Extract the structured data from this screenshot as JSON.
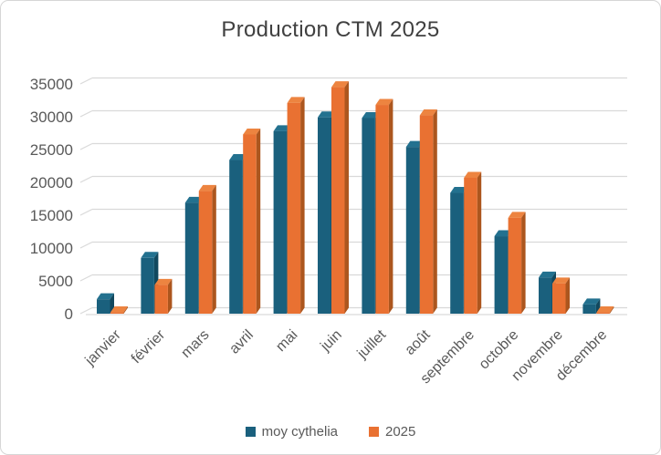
{
  "title": "Production CTM 2025",
  "chart_data": {
    "type": "bar",
    "style": "3d-clustered-column",
    "title": "Production CTM 2025",
    "categories": [
      "janvier",
      "février",
      "mars",
      "avril",
      "mai",
      "juin",
      "juillet",
      "août",
      "septembre",
      "octobre",
      "novembre",
      "décembre"
    ],
    "series": [
      {
        "name": "moy cythelia",
        "color": "#1A607D",
        "color_side": "#11485E",
        "color_top": "#23718F",
        "values": [
          2200,
          8500,
          16900,
          23400,
          27800,
          29900,
          29800,
          25400,
          18400,
          11800,
          5500,
          1400
        ]
      },
      {
        "name": "2025",
        "color": "#E97132",
        "color_side": "#AC561E",
        "color_top": "#ED8440",
        "values": [
          200,
          4400,
          18700,
          27300,
          32100,
          34500,
          31800,
          30200,
          20700,
          14600,
          4600,
          200
        ]
      }
    ],
    "y_ticks": [
      0,
      5000,
      10000,
      15000,
      20000,
      25000,
      30000,
      35000
    ],
    "ylim": [
      0,
      35000
    ],
    "xlabel": "",
    "ylabel": "",
    "grid": true,
    "legend_position": "bottom",
    "axis_text_color": "#595959",
    "gridline_color": "#D9D9D9",
    "title_color": "#404040"
  }
}
